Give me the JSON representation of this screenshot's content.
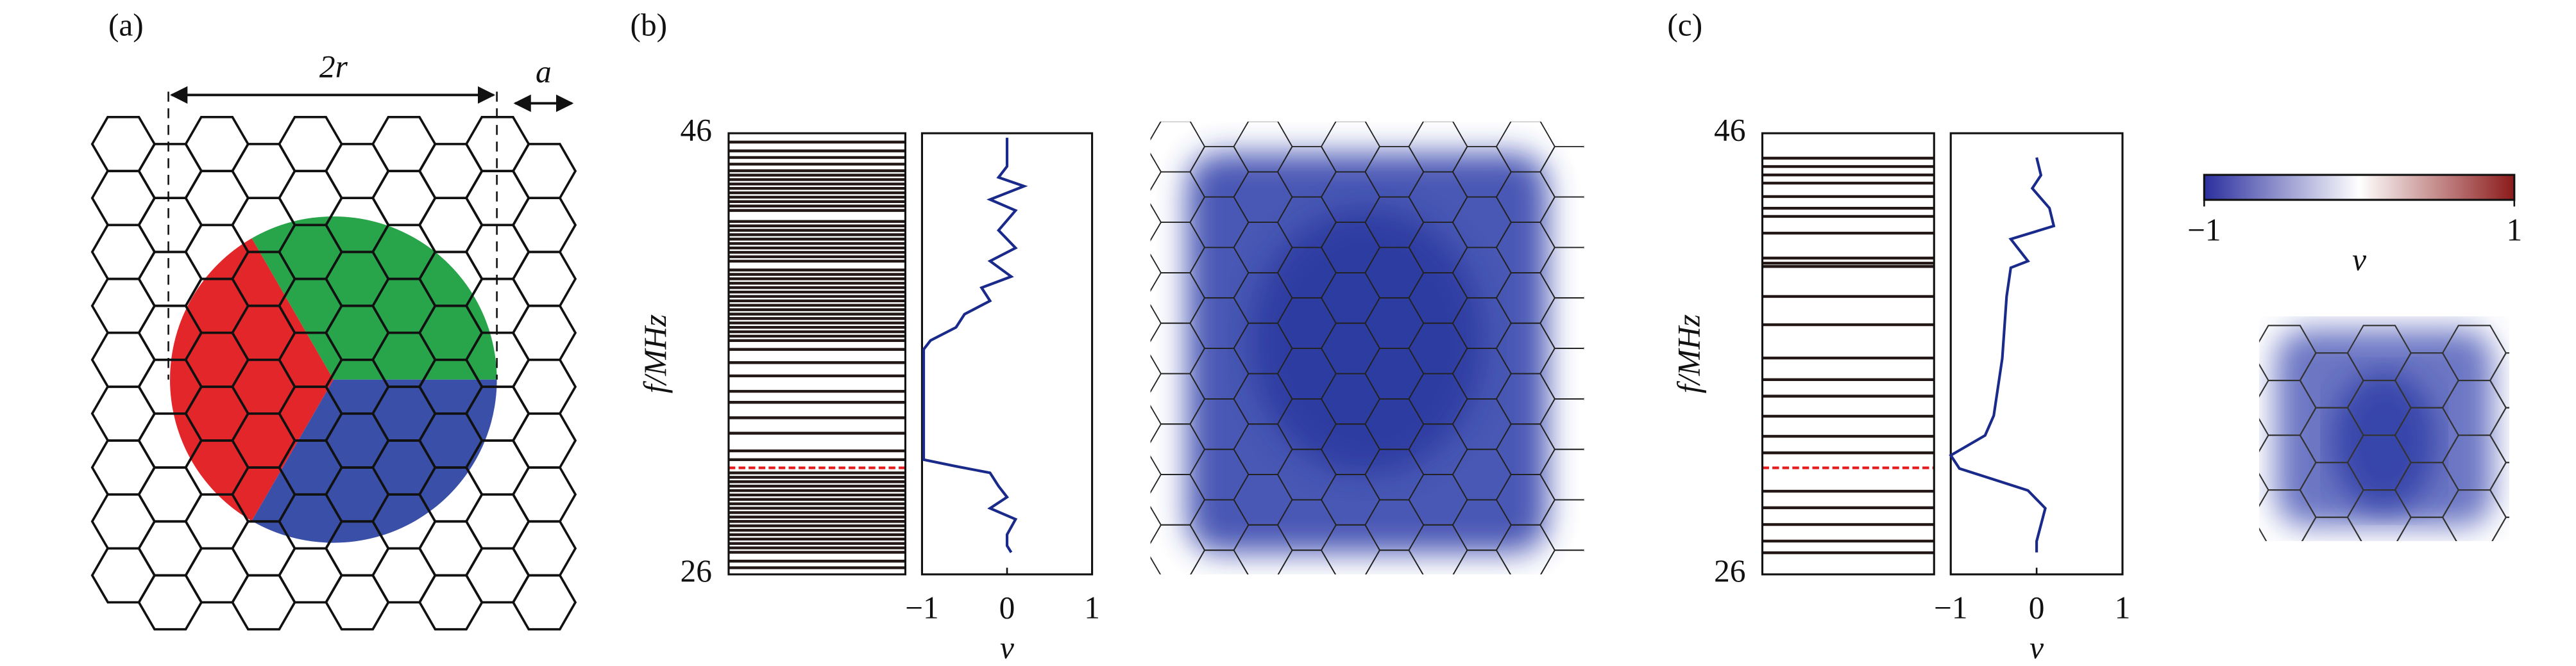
{
  "panel_labels": [
    "(a)",
    "(b)",
    "(c)"
  ],
  "diagram": {
    "width_label": "2r",
    "spacing_label": "a"
  },
  "chart_data": [
    {
      "type": "spectrum",
      "ylabel": "f/MHz",
      "ylim": [
        26,
        46
      ],
      "yticks": [
        26,
        46
      ],
      "color": "#231815",
      "highlight": 30.83,
      "highlight_color": "#e41a1c",
      "values": [
        26.3,
        26.6,
        27.0,
        27.2,
        27.4,
        27.6,
        27.8,
        28.0,
        28.2,
        28.4,
        28.6,
        28.8,
        29.0,
        29.2,
        29.4,
        29.6,
        29.8,
        30.0,
        30.2,
        30.4,
        30.6,
        31.2,
        31.6,
        32.4,
        33.1,
        33.8,
        34.3,
        35.0,
        35.6,
        36.2,
        36.6,
        36.8,
        37.0,
        37.2,
        37.4,
        37.6,
        37.8,
        38.0,
        38.2,
        38.4,
        38.6,
        38.8,
        39.0,
        39.2,
        39.4,
        39.6,
        39.8,
        40.2,
        40.4,
        40.6,
        40.8,
        41.0,
        41.2,
        41.4,
        41.6,
        41.8,
        42.0,
        42.5,
        42.7,
        42.9,
        43.1,
        43.3,
        43.5,
        43.7,
        43.9,
        44.1,
        44.3,
        44.6,
        44.9,
        45.2,
        45.6
      ]
    },
    {
      "type": "profile",
      "xlabel": "ν",
      "xlim": [
        -1,
        1
      ],
      "xticks": [
        {
          "value": -1,
          "label": "−1"
        },
        0,
        1
      ],
      "ylim": [
        26,
        46
      ],
      "color": "#1a2a8a",
      "x": [
        0,
        0,
        -0.1,
        0.2,
        -0.2,
        0.1,
        -0.1,
        0.1,
        -0.2,
        0.05,
        -0.3,
        -0.2,
        -0.5,
        -0.6,
        -0.9,
        -0.98,
        -0.98,
        -0.6,
        -0.2,
        -0.1,
        0,
        -0.2,
        0.1,
        0,
        0,
        0.05
      ],
      "values": [
        45.8,
        44.5,
        44.0,
        43.6,
        43.0,
        42.5,
        41.6,
        40.8,
        40.2,
        39.5,
        39.0,
        38.4,
        37.8,
        37.2,
        36.6,
        36.2,
        31.2,
        30.9,
        30.6,
        30.0,
        29.5,
        29.0,
        28.5,
        27.8,
        27.3,
        27.0
      ]
    },
    {
      "type": "spectrum",
      "ylabel": "f/MHz",
      "ylim": [
        26,
        46
      ],
      "yticks": [
        26,
        46
      ],
      "color": "#231815",
      "highlight": 30.83,
      "highlight_color": "#e41a1c",
      "values": [
        26.98,
        27.51,
        28.26,
        29.02,
        29.77,
        31.51,
        32.26,
        33.17,
        34.08,
        34.83,
        35.81,
        37.32,
        38.6,
        39.96,
        40.11,
        40.34,
        41.47,
        42.23,
        42.6,
        43.13,
        43.74,
        44.11,
        44.49,
        44.87
      ]
    },
    {
      "type": "profile",
      "xlabel": "ν",
      "xlim": [
        -1,
        1
      ],
      "xticks": [
        {
          "value": -1,
          "label": "−1"
        },
        0,
        1
      ],
      "ylim": [
        26,
        46
      ],
      "color": "#1a2a8a",
      "x": [
        0,
        0.05,
        -0.05,
        0.15,
        0.2,
        -0.3,
        -0.1,
        -0.3,
        -0.35,
        -0.4,
        -0.5,
        -0.6,
        -1,
        -0.9,
        -0.5,
        -0.1,
        0.1,
        0,
        0
      ],
      "values": [
        44.9,
        44.1,
        43.5,
        42.6,
        41.8,
        41.2,
        40.2,
        39.9,
        38.6,
        35.8,
        33.2,
        32.3,
        31.4,
        30.8,
        30.3,
        29.8,
        29.0,
        27.5,
        27.0
      ]
    },
    {
      "type": "colorbar",
      "xlabel": "ν",
      "xlim": [
        -1,
        1
      ],
      "xticks": [
        {
          "value": -1,
          "label": "−1"
        },
        1
      ],
      "colors": [
        "#2b2f9e",
        "#ffffff",
        "#8b1a1a"
      ]
    }
  ]
}
